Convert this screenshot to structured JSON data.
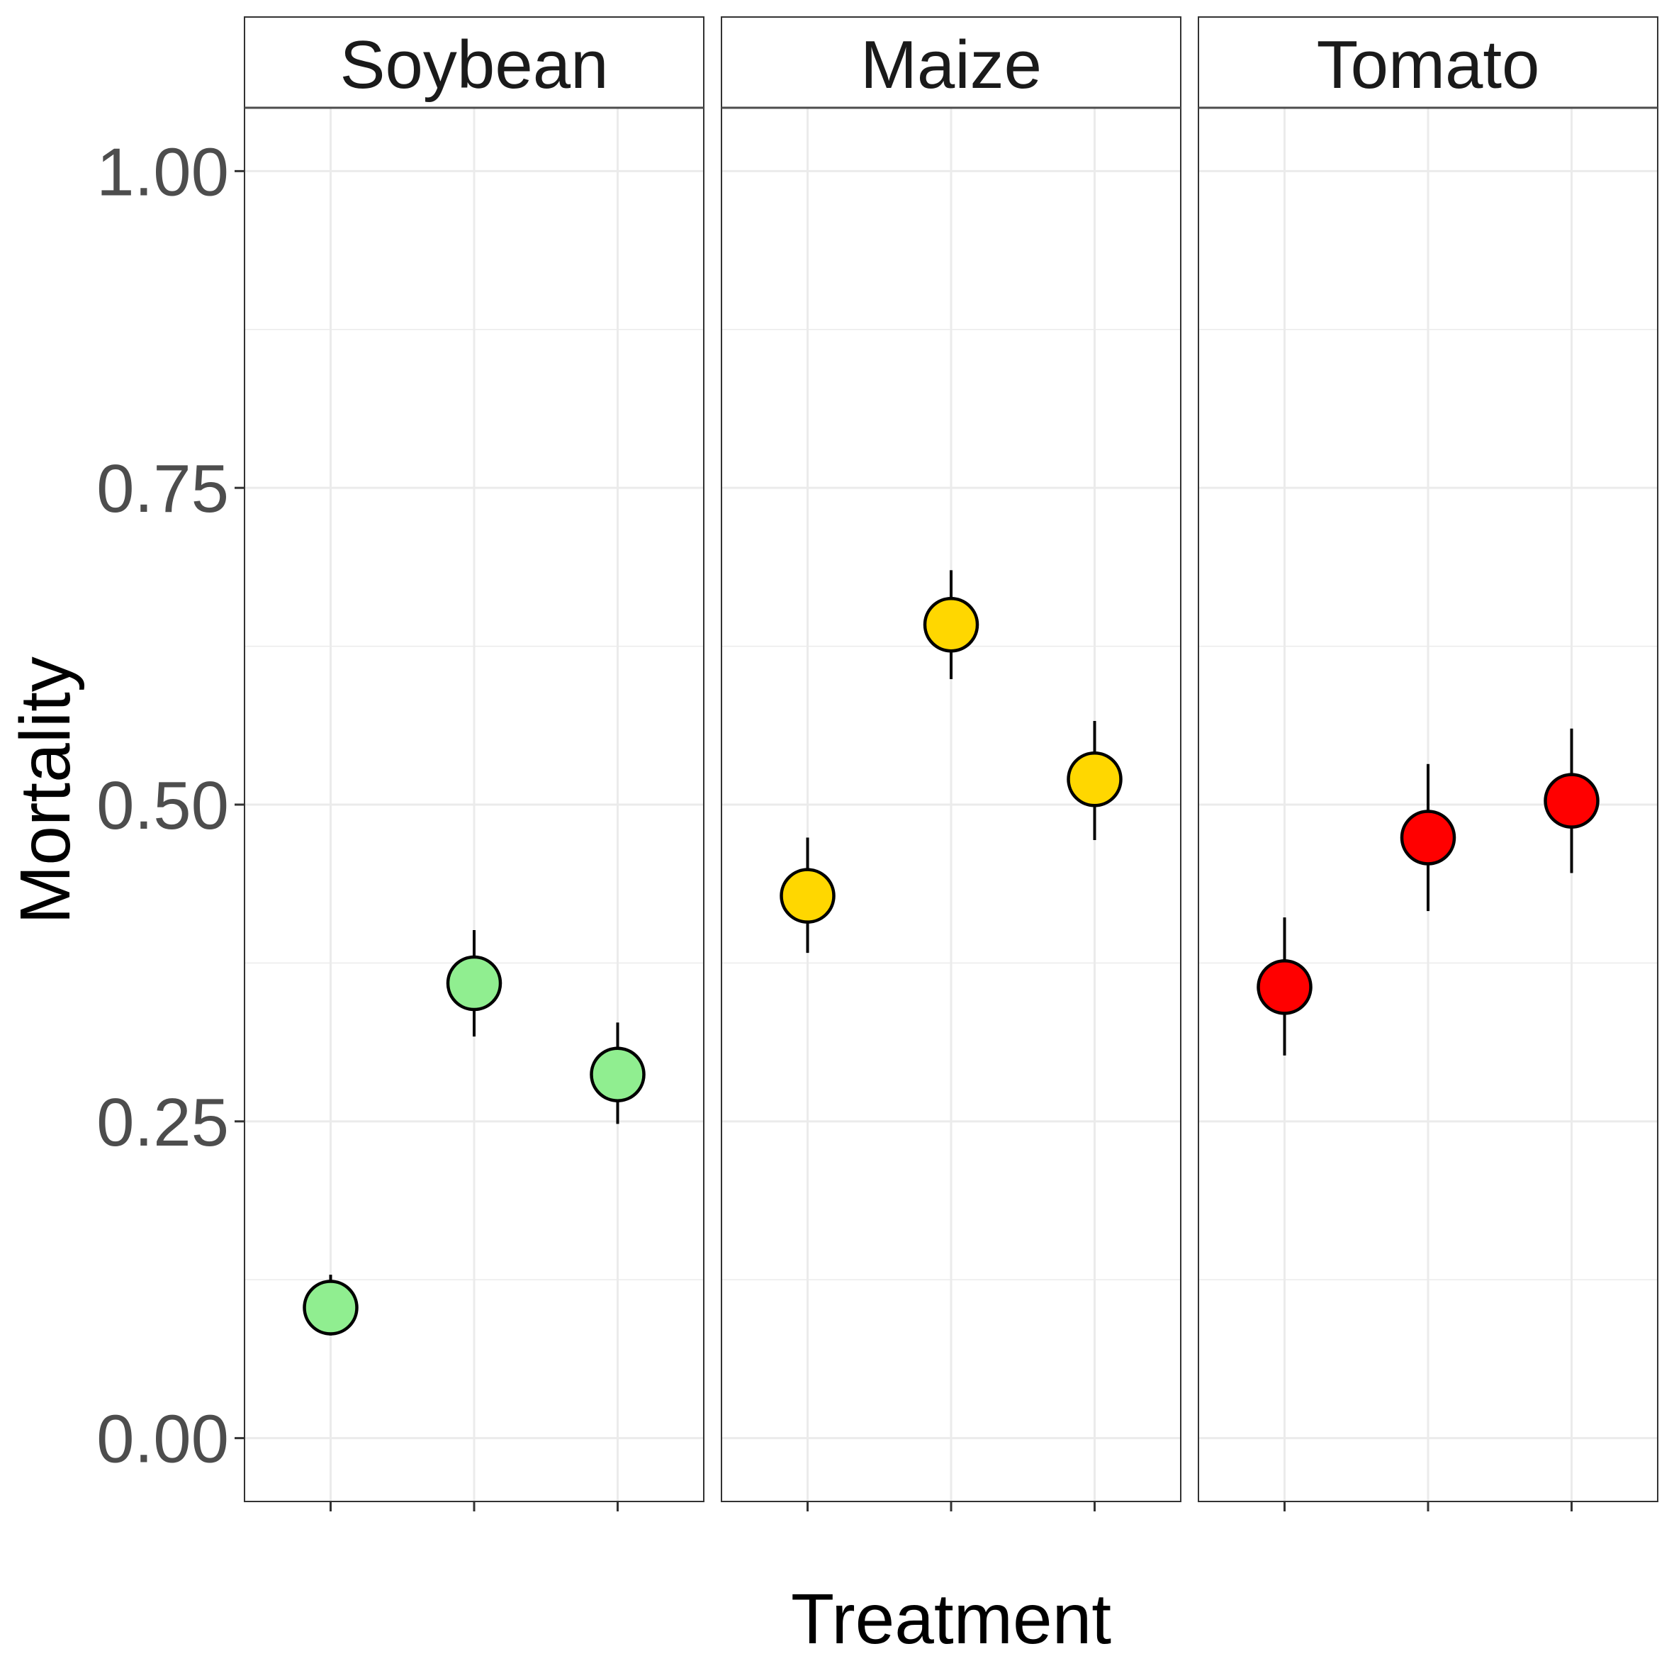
{
  "chart_data": {
    "type": "scatter",
    "title": "",
    "xlabel": "Treatment",
    "ylabel": "Mortality",
    "ylim": [
      -0.05,
      1.05
    ],
    "yticks": [
      0.0,
      0.25,
      0.5,
      0.75,
      1.0
    ],
    "ytick_labels": [
      "0.00",
      "0.25",
      "0.50",
      "0.75",
      "1.00"
    ],
    "x_positions_per_panel": 3,
    "grid": true,
    "facet": true,
    "point_outline_color": "#000000",
    "panels": [
      {
        "name": "Soybean",
        "color": "#90EE90",
        "values": [
          0.103,
          0.359,
          0.287
        ],
        "lower": [
          0.081,
          0.317,
          0.248
        ],
        "upper": [
          0.129,
          0.401,
          0.328
        ]
      },
      {
        "name": "Maize",
        "color": "#FFD700",
        "values": [
          0.428,
          0.642,
          0.52
        ],
        "lower": [
          0.383,
          0.599,
          0.472
        ],
        "upper": [
          0.474,
          0.685,
          0.566
        ]
      },
      {
        "name": "Tomato",
        "color": "#FF0000",
        "values": [
          0.356,
          0.474,
          0.503
        ],
        "lower": [
          0.302,
          0.416,
          0.446
        ],
        "upper": [
          0.411,
          0.532,
          0.56
        ]
      }
    ]
  }
}
